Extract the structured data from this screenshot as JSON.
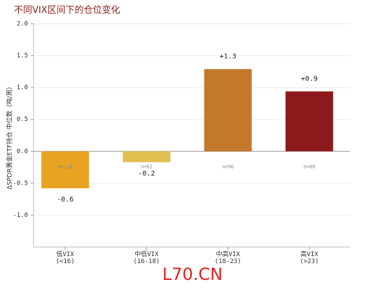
{
  "chart_data": {
    "type": "bar",
    "title": "不同VIX区间下的仓位变化",
    "y_label": "ΔSPDR黄金ETF持仓 中位数（吨/周）",
    "categories": [
      "低VIX\n(<16)",
      "中低VIX\n(16-18)",
      "中高VIX\n(18-23)",
      "高VIX\n(>23)"
    ],
    "values": [
      -0.58,
      -0.17,
      1.29,
      0.94
    ],
    "value_labels": [
      "-0.6",
      "-0.2",
      "+1.3",
      "+0.9"
    ],
    "sample_labels": [
      "n=116",
      "n=62",
      "n=96",
      "n=86"
    ],
    "colors": [
      "#e9a323",
      "#e0c050",
      "#c27a2a",
      "#8c1a1c"
    ],
    "ylim": [
      -1.5,
      2.0
    ],
    "yticks": [
      {
        "value": -1.0,
        "label": "-1.0"
      },
      -0.5,
      {
        "value": 0.0,
        "label": "0.0"
      },
      0.5,
      {
        "value": 1.0,
        "label": "1.0"
      },
      1.5,
      {
        "value": 2.0,
        "label": "2.0"
      }
    ],
    "grid": true,
    "watermark": "L70.CN"
  }
}
